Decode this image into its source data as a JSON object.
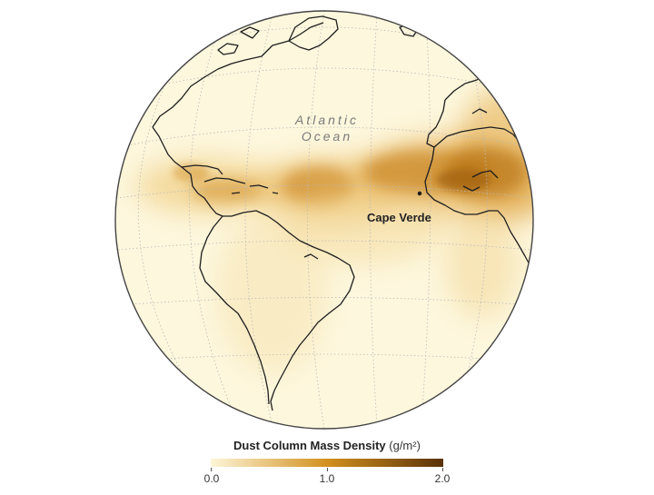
{
  "map": {
    "ocean_label_line1": "Atlantic",
    "ocean_label_line2": "Ocean",
    "place_label": "Cape Verde"
  },
  "legend": {
    "title": "Dust Column Mass Density",
    "unit": "(g/m²)",
    "min_label": "0.0",
    "mid_label": "1.0",
    "max_label": "2.0",
    "scale_min": 0.0,
    "scale_max": 2.0,
    "color_low": "#fdf6d8",
    "color_mid": "#d3901f",
    "color_high": "#5a3207"
  },
  "colors": {
    "globe_fill": "#fdf7dd",
    "graticule": "#b9b9b9",
    "coastline": "#1e1e1e",
    "globe_outline": "#444444"
  }
}
